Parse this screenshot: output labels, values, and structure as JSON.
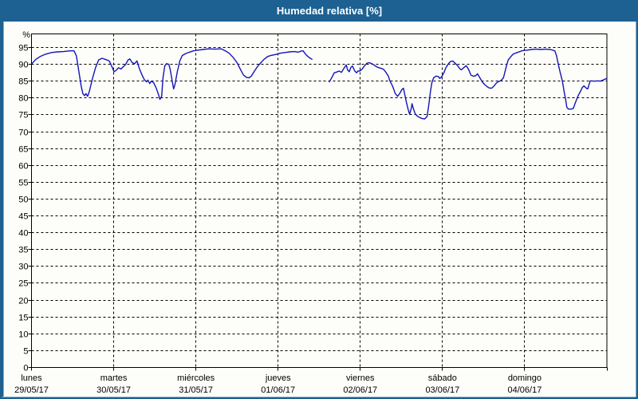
{
  "window": {
    "title": "Humedad relativa [%]"
  },
  "colors": {
    "frame": "#1c6191",
    "titlebar_bg": "#1c6191",
    "title_text": "#ffffff",
    "plot_bg": "#fdfdfa",
    "plot_border": "#000000",
    "grid": "#000000",
    "axis_text": "#000000",
    "line": "#1414b8"
  },
  "chart_data": {
    "type": "line",
    "title": "Humedad relativa [%]",
    "y_unit_label": "%",
    "xlabel": "",
    "ylabel": "",
    "ylim": [
      0,
      99
    ],
    "y_ticks": [
      0,
      5,
      10,
      15,
      20,
      25,
      30,
      35,
      40,
      45,
      50,
      55,
      60,
      65,
      70,
      75,
      80,
      85,
      90,
      95
    ],
    "grid": "dashed",
    "legend": "none",
    "x_axis": {
      "unit": "hours",
      "total_hours": 168,
      "day_labels": [
        {
          "name": "lunes",
          "date": "29/05/17"
        },
        {
          "name": "martes",
          "date": "30/05/17"
        },
        {
          "name": "miércoles",
          "date": "31/05/17"
        },
        {
          "name": "jueves",
          "date": "01/06/17"
        },
        {
          "name": "viernes",
          "date": "02/06/17"
        },
        {
          "name": "sábado",
          "date": "03/06/17"
        },
        {
          "name": "domingo",
          "date": "04/06/17"
        }
      ]
    },
    "series": [
      {
        "name": "Humedad relativa",
        "unit": "%",
        "color": "#1414b8",
        "note": "points are [hours since Monday 00:00, relative humidity %]; data gap between segments (Thursday ~19h-~21h)",
        "segments": [
          [
            [
              0.1,
              90.2
            ],
            [
              1.3,
              91.5
            ],
            [
              2.5,
              92.3
            ],
            [
              4.1,
              93.0
            ],
            [
              5.9,
              93.5
            ],
            [
              7.6,
              93.7
            ],
            [
              9.4,
              93.8
            ],
            [
              11.3,
              94.0
            ],
            [
              12.4,
              94.0
            ],
            [
              13.1,
              92.5
            ],
            [
              13.8,
              88.0
            ],
            [
              14.5,
              83.5
            ],
            [
              15.0,
              81.3
            ],
            [
              15.5,
              80.7
            ],
            [
              15.9,
              81.3
            ],
            [
              16.4,
              80.5
            ],
            [
              16.9,
              82.0
            ],
            [
              17.6,
              85.0
            ],
            [
              18.0,
              86.5
            ],
            [
              18.7,
              89.0
            ],
            [
              19.6,
              91.3
            ],
            [
              20.6,
              91.8
            ],
            [
              21.5,
              91.5
            ],
            [
              22.7,
              91.0
            ],
            [
              23.4,
              89.5
            ],
            [
              24.1,
              87.8
            ],
            [
              24.8,
              88.3
            ],
            [
              25.4,
              89.0
            ],
            [
              26.1,
              88.6
            ],
            [
              26.8,
              89.3
            ],
            [
              27.5,
              90.0
            ],
            [
              28.2,
              91.3
            ],
            [
              28.7,
              91.6
            ],
            [
              29.4,
              90.5
            ],
            [
              30.1,
              90.2
            ],
            [
              30.8,
              91.0
            ],
            [
              31.5,
              88.7
            ],
            [
              32.2,
              87.0
            ],
            [
              32.9,
              85.5
            ],
            [
              33.6,
              84.8
            ],
            [
              34.0,
              85.3
            ],
            [
              34.5,
              84.3
            ],
            [
              35.0,
              85.0
            ],
            [
              35.7,
              84.5
            ],
            [
              36.4,
              83.0
            ],
            [
              37.1,
              81.0
            ],
            [
              37.5,
              79.6
            ],
            [
              38.0,
              80.5
            ],
            [
              38.4,
              86.0
            ],
            [
              38.9,
              89.5
            ],
            [
              39.4,
              90.2
            ],
            [
              40.1,
              90.0
            ],
            [
              40.5,
              88.5
            ],
            [
              41.0,
              85.5
            ],
            [
              41.5,
              82.7
            ],
            [
              41.9,
              84.0
            ],
            [
              42.6,
              88.0
            ],
            [
              43.3,
              91.0
            ],
            [
              44.0,
              92.6
            ],
            [
              45.0,
              93.2
            ],
            [
              46.1,
              93.6
            ],
            [
              47.3,
              94.0
            ],
            [
              48.4,
              94.2
            ],
            [
              50.1,
              94.4
            ],
            [
              51.7,
              94.6
            ],
            [
              53.5,
              94.5
            ],
            [
              55.4,
              94.6
            ],
            [
              56.6,
              94.0
            ],
            [
              57.7,
              93.3
            ],
            [
              58.9,
              92.0
            ],
            [
              60.0,
              90.5
            ],
            [
              61.0,
              88.5
            ],
            [
              61.9,
              86.8
            ],
            [
              62.8,
              86.1
            ],
            [
              63.5,
              86.0
            ],
            [
              64.2,
              86.5
            ],
            [
              65.1,
              88.0
            ],
            [
              66.1,
              89.5
            ],
            [
              67.0,
              90.5
            ],
            [
              67.9,
              91.5
            ],
            [
              68.9,
              92.3
            ],
            [
              69.8,
              92.6
            ],
            [
              70.7,
              92.8
            ],
            [
              71.6,
              93.0
            ],
            [
              72.6,
              93.3
            ],
            [
              74.0,
              93.5
            ],
            [
              75.4,
              93.7
            ],
            [
              76.8,
              93.8
            ],
            [
              77.9,
              93.6
            ],
            [
              78.6,
              93.9
            ],
            [
              79.3,
              94.0
            ],
            [
              80.0,
              93.0
            ],
            [
              80.7,
              92.3
            ],
            [
              81.4,
              91.8
            ],
            [
              81.9,
              91.5
            ]
          ],
          [
            [
              87.0,
              84.8
            ],
            [
              87.9,
              86.5
            ],
            [
              88.4,
              87.5
            ],
            [
              89.1,
              87.7
            ],
            [
              89.8,
              88.0
            ],
            [
              90.5,
              87.6
            ],
            [
              91.2,
              88.8
            ],
            [
              91.9,
              89.8
            ],
            [
              92.3,
              88.3
            ],
            [
              92.8,
              87.8
            ],
            [
              93.2,
              89.0
            ],
            [
              93.7,
              89.5
            ],
            [
              94.4,
              88.0
            ],
            [
              94.9,
              87.5
            ],
            [
              95.3,
              88.0
            ],
            [
              95.8,
              88.0
            ],
            [
              96.5,
              88.5
            ],
            [
              97.2,
              89.5
            ],
            [
              97.9,
              90.3
            ],
            [
              98.6,
              90.5
            ],
            [
              99.3,
              90.2
            ],
            [
              100.0,
              89.8
            ],
            [
              100.7,
              89.3
            ],
            [
              101.4,
              89.0
            ],
            [
              102.1,
              88.8
            ],
            [
              102.8,
              88.5
            ],
            [
              103.5,
              87.6
            ],
            [
              104.2,
              86.5
            ],
            [
              104.6,
              85.2
            ],
            [
              105.3,
              83.8
            ],
            [
              105.8,
              82.5
            ],
            [
              106.2,
              81.3
            ],
            [
              106.9,
              80.5
            ],
            [
              107.6,
              81.5
            ],
            [
              108.1,
              82.5
            ],
            [
              108.6,
              82.9
            ],
            [
              109.0,
              81.0
            ],
            [
              109.5,
              78.5
            ],
            [
              110.0,
              76.5
            ],
            [
              110.4,
              75.2
            ],
            [
              110.9,
              77.0
            ],
            [
              111.1,
              78.3
            ],
            [
              111.6,
              76.5
            ],
            [
              112.1,
              75.2
            ],
            [
              112.8,
              74.5
            ],
            [
              113.4,
              74.2
            ],
            [
              114.1,
              73.9
            ],
            [
              114.8,
              73.8
            ],
            [
              115.5,
              74.5
            ],
            [
              116.0,
              78.0
            ],
            [
              116.5,
              82.0
            ],
            [
              116.9,
              84.5
            ],
            [
              117.4,
              86.0
            ],
            [
              118.1,
              86.5
            ],
            [
              118.8,
              86.4
            ],
            [
              119.2,
              85.8
            ],
            [
              119.7,
              86.2
            ],
            [
              120.4,
              87.5
            ],
            [
              120.9,
              88.8
            ],
            [
              121.6,
              90.0
            ],
            [
              122.3,
              90.8
            ],
            [
              123.0,
              91.0
            ],
            [
              123.7,
              90.3
            ],
            [
              124.4,
              89.6
            ],
            [
              125.1,
              88.6
            ],
            [
              125.5,
              88.4
            ],
            [
              126.2,
              89.0
            ],
            [
              126.9,
              89.6
            ],
            [
              127.6,
              88.5
            ],
            [
              128.3,
              86.8
            ],
            [
              129.0,
              86.5
            ],
            [
              129.7,
              86.6
            ],
            [
              130.2,
              87.2
            ],
            [
              130.9,
              86.0
            ],
            [
              131.6,
              84.8
            ],
            [
              132.3,
              84.0
            ],
            [
              133.0,
              83.4
            ],
            [
              133.6,
              83.0
            ],
            [
              134.3,
              82.9
            ],
            [
              135.0,
              83.5
            ],
            [
              135.7,
              84.4
            ],
            [
              136.4,
              84.9
            ],
            [
              137.1,
              85.2
            ],
            [
              137.8,
              86.0
            ],
            [
              138.3,
              88.0
            ],
            [
              138.8,
              90.0
            ],
            [
              139.2,
              91.3
            ],
            [
              139.9,
              92.2
            ],
            [
              140.6,
              93.0
            ],
            [
              141.8,
              93.5
            ],
            [
              142.9,
              93.9
            ],
            [
              143.6,
              94.1
            ],
            [
              144.6,
              94.2
            ],
            [
              146.0,
              94.4
            ],
            [
              147.3,
              94.5
            ],
            [
              148.7,
              94.4
            ],
            [
              150.1,
              94.5
            ],
            [
              151.5,
              94.4
            ],
            [
              152.8,
              94.0
            ],
            [
              153.3,
              92.5
            ],
            [
              153.8,
              90.1
            ],
            [
              154.3,
              87.8
            ],
            [
              155.0,
              85.0
            ],
            [
              155.5,
              82.0
            ],
            [
              155.9,
              79.9
            ],
            [
              156.3,
              77.2
            ],
            [
              156.8,
              76.7
            ],
            [
              157.5,
              76.7
            ],
            [
              158.2,
              76.9
            ],
            [
              158.7,
              78.4
            ],
            [
              159.6,
              80.7
            ],
            [
              160.4,
              82.2
            ],
            [
              160.8,
              83.1
            ],
            [
              161.3,
              83.6
            ],
            [
              161.9,
              83.0
            ],
            [
              162.4,
              82.7
            ],
            [
              163.1,
              85.1
            ],
            [
              164.3,
              85.0
            ],
            [
              165.4,
              85.1
            ],
            [
              166.1,
              85.0
            ],
            [
              166.8,
              85.3
            ],
            [
              167.5,
              85.6
            ],
            [
              167.9,
              85.8
            ]
          ]
        ]
      }
    ]
  }
}
